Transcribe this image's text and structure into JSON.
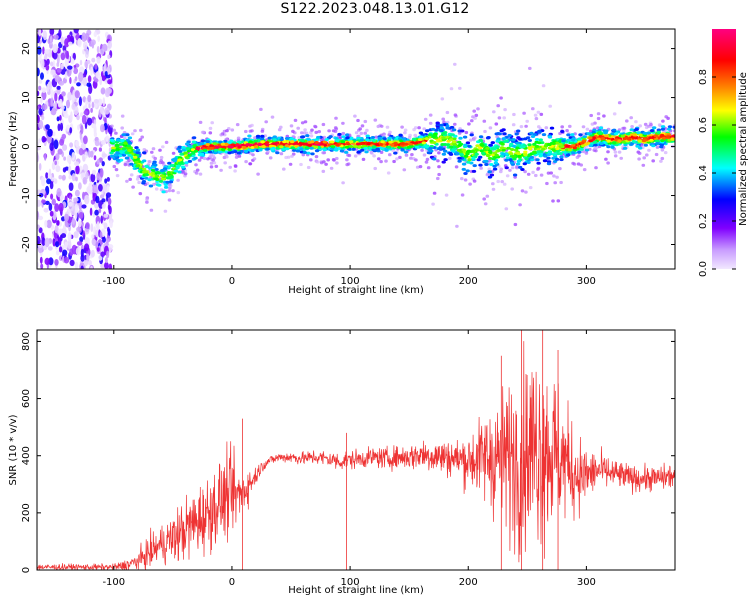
{
  "figure": {
    "title": "S122.2023.048.13.01.G12"
  },
  "chart_data": [
    {
      "type": "heatmap",
      "title": "",
      "xlabel": "Height of straight line (km)",
      "ylabel": "Frequency (Hz)",
      "xlim": [
        -165,
        375
      ],
      "ylim": [
        -25,
        24
      ],
      "xticks": [
        -100,
        0,
        100,
        200,
        300
      ],
      "yticks": [
        -20,
        -10,
        0,
        10,
        20
      ],
      "colorbar": {
        "label": "Normalized spectral amplitude",
        "range": [
          0,
          1
        ],
        "ticks": [
          0.0,
          0.2,
          0.4,
          0.6,
          0.8
        ],
        "colors": [
          "#f2e8ff",
          "#8000ff",
          "#0000ff",
          "#00ffff",
          "#00ff00",
          "#ffff00",
          "#ff8000",
          "#ff0000",
          "#ff0080"
        ]
      },
      "noise_region_x": [
        -165,
        -102
      ],
      "ridge_line": {
        "x": [
          -102,
          -95,
          -90,
          -85,
          -80,
          -75,
          -70,
          -65,
          -60,
          -55,
          -50,
          -45,
          -40,
          -35,
          -30,
          -20,
          -10,
          0,
          25,
          50,
          75,
          100,
          125,
          150,
          170,
          180,
          190,
          200,
          210,
          220,
          230,
          240,
          250,
          260,
          270,
          280,
          290,
          300,
          310,
          320,
          330,
          340,
          350,
          360,
          375
        ],
        "y": [
          0,
          0,
          0,
          -1,
          -3,
          -5,
          -5.5,
          -6,
          -6.5,
          -6,
          -5,
          -3,
          -2,
          -1,
          -0.5,
          0,
          0,
          0,
          0.5,
          0.5,
          0.5,
          0.5,
          0.5,
          0.5,
          1.5,
          1.5,
          0.5,
          -2,
          0,
          -2,
          0,
          -1.5,
          -1,
          0,
          0,
          0,
          0,
          1,
          2,
          1.5,
          1.5,
          2,
          1.5,
          2,
          2
        ]
      },
      "grid": false
    },
    {
      "type": "line",
      "title": "",
      "xlabel": "Height of straight line (km)",
      "ylabel": "SNR (10 * v/v)",
      "xlim": [
        -165,
        375
      ],
      "ylim": [
        0,
        840
      ],
      "xticks": [
        -100,
        0,
        100,
        200,
        300
      ],
      "yticks": [
        0,
        200,
        400,
        600,
        800
      ],
      "series_color": "#ee3333",
      "series": [
        {
          "x": [
            -165,
            -140,
            -120,
            -100,
            -90,
            -80,
            -70,
            -60,
            -50,
            -40,
            -30,
            -20,
            -10,
            0,
            5,
            10,
            15,
            20,
            25,
            30,
            40,
            50,
            60,
            70,
            80,
            90,
            100,
            110,
            120,
            130,
            140,
            150,
            160,
            170,
            180,
            190,
            200,
            210,
            220,
            230,
            240,
            250,
            260,
            270,
            280,
            290,
            300,
            310,
            320,
            330,
            340,
            350,
            360,
            375
          ],
          "mean": [
            10,
            10,
            10,
            10,
            15,
            30,
            60,
            90,
            110,
            140,
            170,
            200,
            240,
            270,
            260,
            280,
            300,
            330,
            360,
            380,
            395,
            395,
            390,
            395,
            390,
            380,
            385,
            390,
            395,
            390,
            395,
            395,
            405,
            400,
            395,
            390,
            385,
            390,
            400,
            390,
            390,
            420,
            440,
            420,
            390,
            340,
            330,
            350,
            340,
            330,
            320,
            320,
            320,
            330
          ],
          "spread": [
            10,
            10,
            10,
            10,
            20,
            30,
            50,
            60,
            80,
            100,
            110,
            120,
            130,
            130,
            90,
            80,
            50,
            30,
            20,
            15,
            15,
            20,
            20,
            25,
            25,
            30,
            30,
            30,
            30,
            35,
            35,
            40,
            50,
            55,
            60,
            60,
            90,
            120,
            180,
            220,
            280,
            300,
            320,
            280,
            200,
            140,
            90,
            60,
            50,
            45,
            40,
            40,
            40,
            40
          ],
          "spikes": [
            {
              "x": 9,
              "y": 530
            },
            {
              "x": 97,
              "y": 480
            },
            {
              "x": 228,
              "y": 750
            },
            {
              "x": 245,
              "y": 845
            },
            {
              "x": 263,
              "y": 880
            },
            {
              "x": 276,
              "y": 770
            }
          ]
        }
      ],
      "grid": false
    }
  ]
}
